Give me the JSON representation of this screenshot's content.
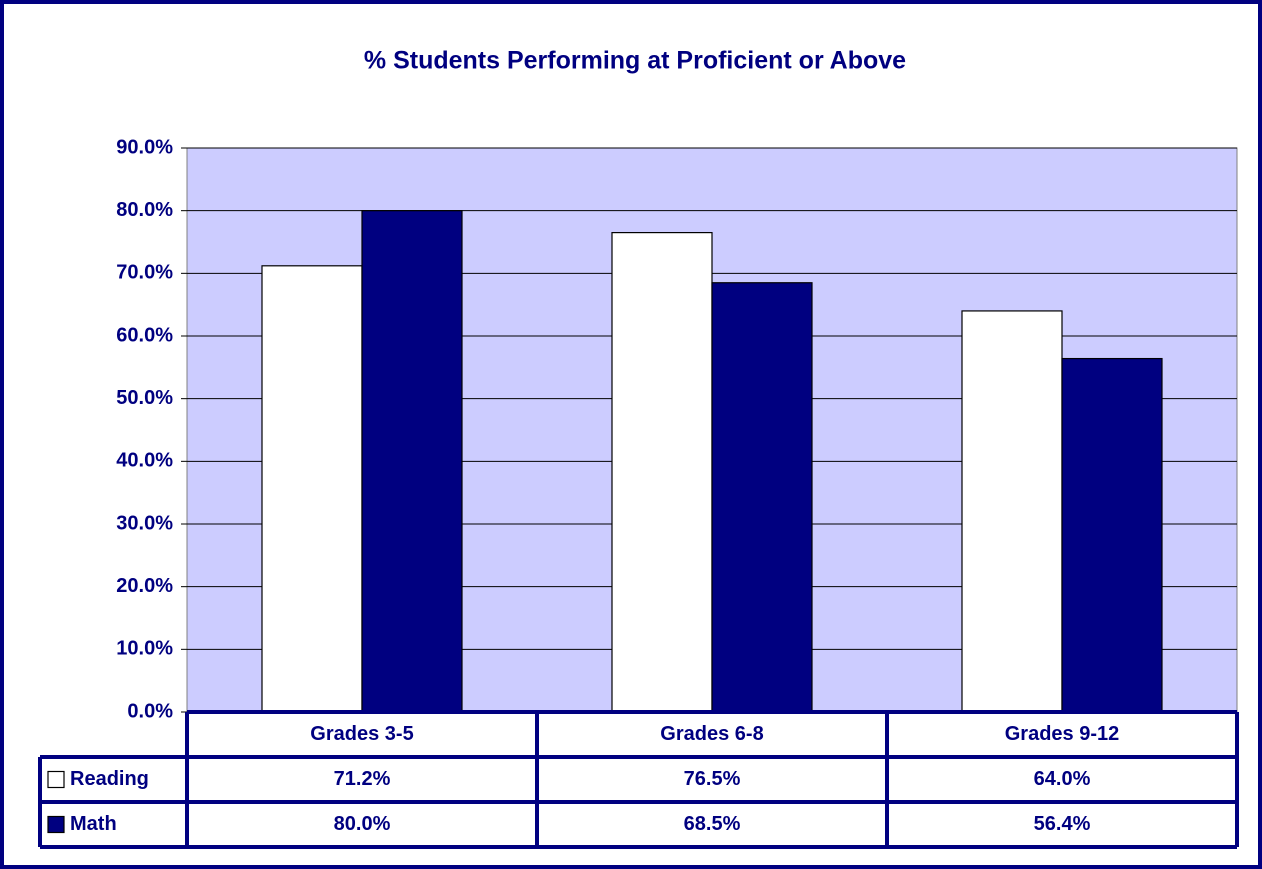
{
  "chart_data": {
    "type": "bar",
    "title": "% Students Performing at Proficient or Above",
    "categories": [
      "Grades 3-5",
      "Grades 6-8",
      "Grades 9-12"
    ],
    "series": [
      {
        "name": "Reading",
        "color": "#ffffff",
        "values": [
          71.2,
          76.5,
          64.0
        ],
        "value_labels": [
          "71.2%",
          "76.5%",
          "64.0%"
        ]
      },
      {
        "name": "Math",
        "color": "#000080",
        "values": [
          80.0,
          68.5,
          56.4
        ],
        "value_labels": [
          "80.0%",
          "68.5%",
          "56.4%"
        ]
      }
    ],
    "ylim": [
      0,
      90
    ],
    "yticks": [
      {
        "value": 0,
        "label": "0.0%"
      },
      {
        "value": 10,
        "label": "10.0%"
      },
      {
        "value": 20,
        "label": "20.0%"
      },
      {
        "value": 30,
        "label": "30.0%"
      },
      {
        "value": 40,
        "label": "40.0%"
      },
      {
        "value": 50,
        "label": "50.0%"
      },
      {
        "value": 60,
        "label": "60.0%"
      },
      {
        "value": 70,
        "label": "70.0%"
      },
      {
        "value": 80,
        "label": "80.0%"
      },
      {
        "value": 90,
        "label": "90.0%"
      }
    ],
    "grid": true,
    "plot_background": "#ccccff"
  }
}
